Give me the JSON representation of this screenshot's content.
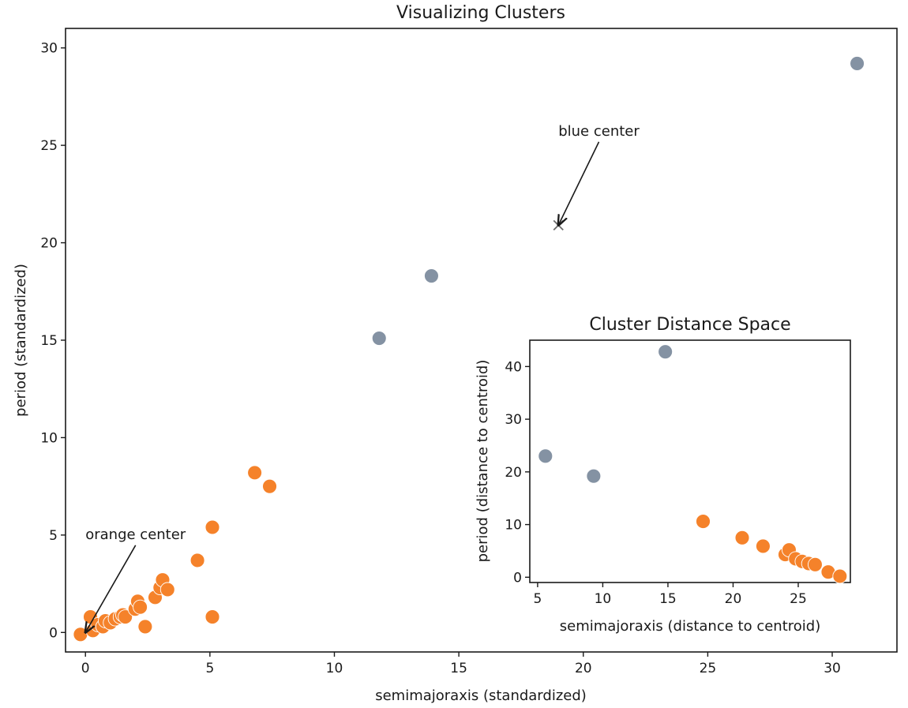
{
  "chart_data": [
    {
      "id": "main",
      "type": "scatter",
      "title": "Visualizing Clusters",
      "xlabel": "semimajoraxis (standardized)",
      "ylabel": "period (standardized)",
      "xlim": [
        -0.8,
        32.6
      ],
      "ylim": [
        -1.0,
        31.0
      ],
      "xticks": [
        0,
        5,
        10,
        15,
        20,
        25,
        30
      ],
      "yticks": [
        0,
        5,
        10,
        15,
        20,
        25,
        30
      ],
      "series": [
        {
          "color": "#8492a3",
          "points": [
            [
              11.8,
              15.1
            ],
            [
              13.9,
              18.3
            ],
            [
              31.0,
              29.2
            ]
          ]
        },
        {
          "color": "#f5822a",
          "points": [
            [
              -0.2,
              -0.1
            ],
            [
              0.2,
              0.8
            ],
            [
              0.3,
              0.1
            ],
            [
              0.5,
              0.4
            ],
            [
              0.7,
              0.3
            ],
            [
              0.8,
              0.6
            ],
            [
              1.0,
              0.5
            ],
            [
              1.2,
              0.7
            ],
            [
              1.4,
              0.8
            ],
            [
              1.5,
              0.9
            ],
            [
              1.6,
              0.8
            ],
            [
              2.0,
              1.2
            ],
            [
              2.1,
              1.6
            ],
            [
              2.2,
              1.3
            ],
            [
              2.4,
              0.3
            ],
            [
              2.8,
              1.8
            ],
            [
              3.0,
              2.3
            ],
            [
              3.1,
              2.7
            ],
            [
              3.3,
              2.2
            ],
            [
              4.5,
              3.7
            ],
            [
              5.1,
              5.4
            ],
            [
              5.1,
              0.8
            ],
            [
              6.8,
              8.2
            ],
            [
              7.4,
              7.5
            ]
          ]
        }
      ],
      "centers": [
        {
          "x": 19.0,
          "y": 20.9,
          "color": "#6b6b6b",
          "marker": "x"
        }
      ],
      "annotations": [
        {
          "text": "blue center",
          "xytext": [
            19.0,
            25.5
          ],
          "xy": [
            19.0,
            20.9
          ]
        },
        {
          "text": "orange center",
          "xytext": [
            0.0,
            4.8
          ],
          "xy": [
            0.0,
            0.0
          ]
        }
      ]
    },
    {
      "id": "inset",
      "type": "scatter",
      "title": "Cluster Distance Space",
      "xlabel": "semimajoraxis (distance to centroid)",
      "ylabel": "period (distance to centroid)",
      "xlim": [
        4.4,
        29.0
      ],
      "ylim": [
        -1.0,
        45.0
      ],
      "xticks": [
        5,
        10,
        15,
        20,
        25
      ],
      "yticks": [
        0,
        10,
        20,
        30,
        40
      ],
      "series": [
        {
          "color": "#8492a3",
          "points": [
            [
              5.6,
              23.0
            ],
            [
              9.3,
              19.2
            ],
            [
              14.8,
              42.8
            ]
          ]
        },
        {
          "color": "#f5822a",
          "points": [
            [
              17.7,
              10.6
            ],
            [
              20.7,
              7.5
            ],
            [
              22.3,
              5.9
            ],
            [
              24.0,
              4.3
            ],
            [
              24.3,
              5.2
            ],
            [
              24.8,
              3.5
            ],
            [
              25.3,
              3.0
            ],
            [
              25.8,
              2.6
            ],
            [
              26.3,
              2.4
            ],
            [
              27.3,
              1.0
            ],
            [
              28.2,
              0.2
            ]
          ]
        }
      ]
    }
  ]
}
